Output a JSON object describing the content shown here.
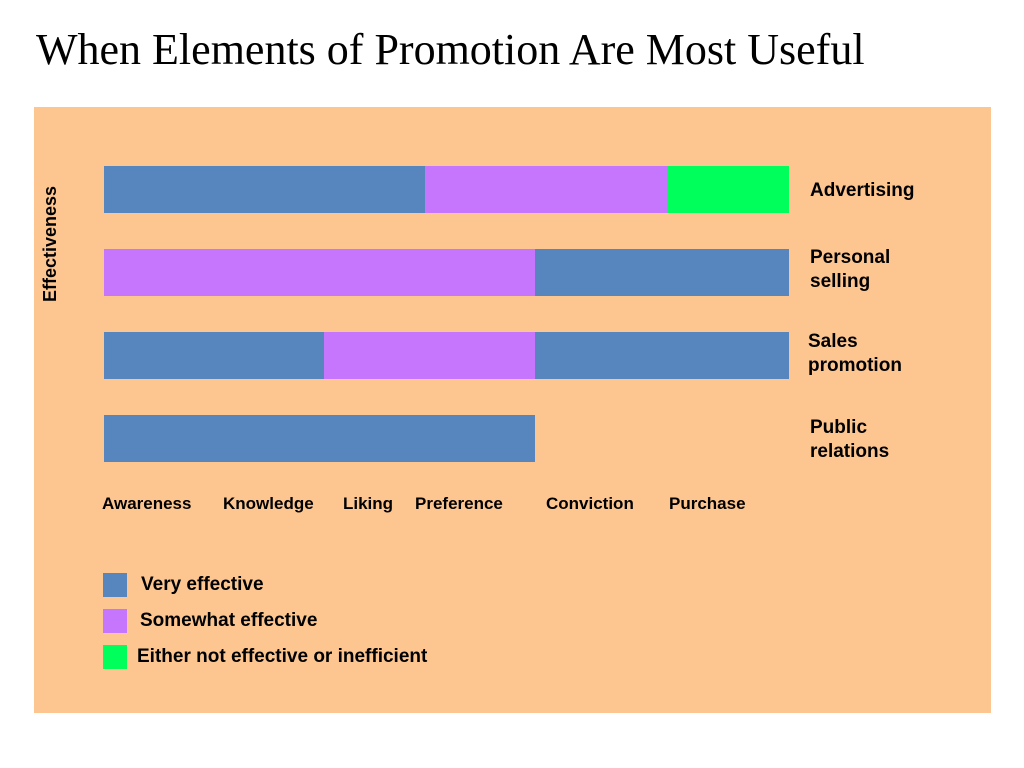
{
  "title": "When Elements of Promotion Are Most Useful",
  "colors": {
    "panel": "#FDC690",
    "very_effective": "#5785BD",
    "somewhat_effective": "#C576FC",
    "not_effective": "#00FF5A"
  },
  "chart_data": {
    "type": "bar",
    "orientation": "horizontal-stacked",
    "ylabel": "Effectiveness",
    "stages": [
      "Awareness",
      "Knowledge",
      "Liking",
      "Preference",
      "Conviction",
      "Purchase"
    ],
    "legend": [
      {
        "key": "very",
        "label": "Very effective",
        "color": "#5785BD"
      },
      {
        "key": "somewhat",
        "label": "Somewhat effective",
        "color": "#C576FC"
      },
      {
        "key": "not",
        "label": "Either not effective or inefficient",
        "color": "#00FF5A"
      }
    ],
    "rows": [
      {
        "label": "Advertising",
        "segments": [
          {
            "rating": "very",
            "from": 0,
            "to": 3
          },
          {
            "rating": "somewhat",
            "from": 3,
            "to": 5
          },
          {
            "rating": "not",
            "from": 5,
            "to": 6
          }
        ]
      },
      {
        "label": "Personal\nselling",
        "segments": [
          {
            "rating": "somewhat",
            "from": 0,
            "to": 4
          },
          {
            "rating": "very",
            "from": 4,
            "to": 6
          }
        ]
      },
      {
        "label": "Sales\npromotion",
        "segments": [
          {
            "rating": "very",
            "from": 0,
            "to": 2
          },
          {
            "rating": "somewhat",
            "from": 2,
            "to": 4
          },
          {
            "rating": "very",
            "from": 4,
            "to": 6
          }
        ]
      },
      {
        "label": "Public\nrelations",
        "segments": [
          {
            "rating": "very",
            "from": 0,
            "to": 4
          }
        ]
      }
    ]
  }
}
